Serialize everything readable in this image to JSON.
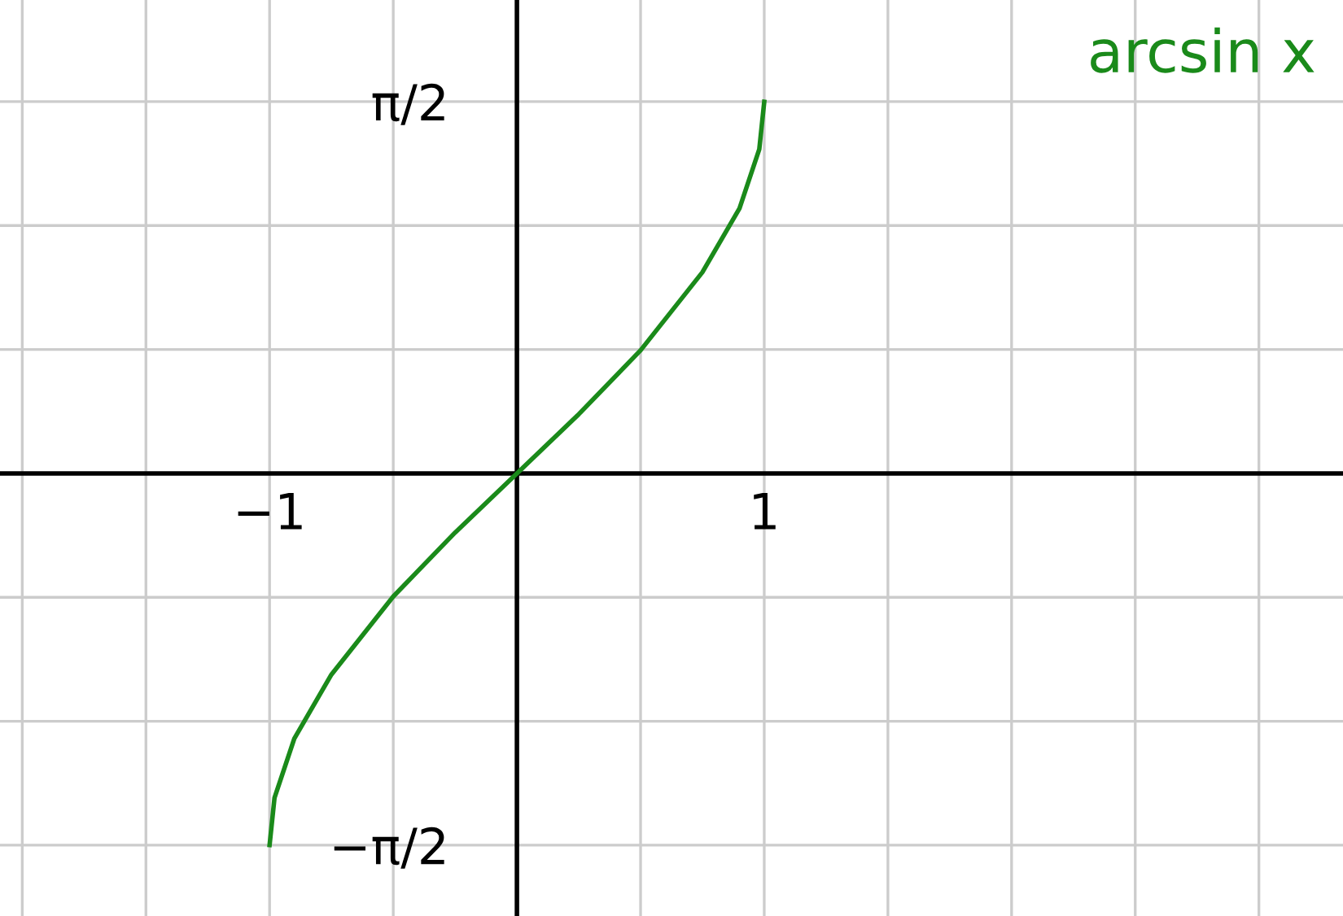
{
  "chart_data": {
    "type": "line",
    "annotations": [
      "arcsin x"
    ],
    "x": [
      -1,
      -0.98,
      -0.9,
      -0.75,
      -0.5,
      -0.25,
      0,
      0.25,
      0.5,
      0.75,
      0.9,
      0.98,
      1
    ],
    "series": [
      {
        "color": "#1a8a1a",
        "values": [
          -1.57,
          -1.37,
          -1.12,
          -0.85,
          -0.52,
          -0.25,
          0,
          0.25,
          0.52,
          0.85,
          1.12,
          1.37,
          1.57
        ]
      }
    ],
    "xlim": [
      -2.09,
      3.34
    ],
    "ylim": [
      -1.87,
      2.0
    ],
    "xticks": [
      {
        "value": -2,
        "label": null
      },
      {
        "value": -1.5,
        "label": null
      },
      {
        "value": -1,
        "label": "−1"
      },
      {
        "value": -0.5,
        "label": null
      },
      {
        "value": 0.5,
        "label": null
      },
      {
        "value": 1,
        "label": "1"
      },
      {
        "value": 1.5,
        "label": null
      },
      {
        "value": 2,
        "label": null
      },
      {
        "value": 2.5,
        "label": null
      },
      {
        "value": 3,
        "label": null
      }
    ],
    "yticks": [
      {
        "value": -1.5708,
        "label": "−π/2"
      },
      {
        "value": -1.0472,
        "label": null
      },
      {
        "value": -0.5236,
        "label": null
      },
      {
        "value": 0.5236,
        "label": null
      },
      {
        "value": 1.0472,
        "label": null
      },
      {
        "value": 1.5708,
        "label": "π/2"
      }
    ],
    "grid": true,
    "marker": "none",
    "line_style": "solid"
  }
}
